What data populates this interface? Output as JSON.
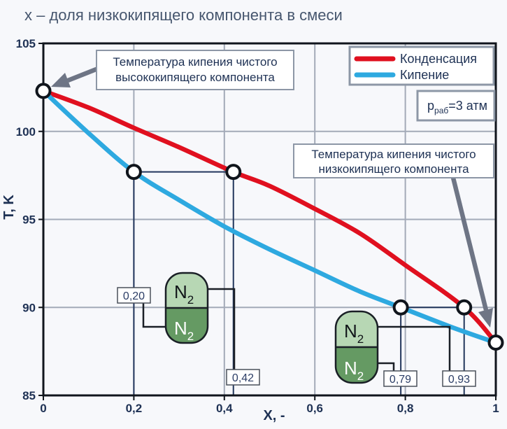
{
  "title": "х – доля низкокипящего компонента в смеси",
  "axes": {
    "x_label": "X, -",
    "y_label": "T, K"
  },
  "legend": {
    "items": [
      {
        "label": "Конденсация",
        "color": "#e0101f"
      },
      {
        "label": "Кипение",
        "color": "#2ea9e0"
      }
    ]
  },
  "pressure_box": {
    "symbol": "p",
    "subscript": "раб",
    "value": "=3 атм"
  },
  "annotations": {
    "high_boiling": {
      "line1": "Температура кипения чистого",
      "line2": "высококипящего компонента"
    },
    "low_boiling": {
      "line1": "Температура кипения чистого",
      "line2": "низкокипящего компонента"
    }
  },
  "component": {
    "symbol": "N",
    "subscript": "2"
  },
  "point_labels": {
    "liquid1": "0,20",
    "vapor1": "0,42",
    "liquid2": "0,79",
    "vapor2": "0,93"
  },
  "colors": {
    "background": "#f7f8fb",
    "grid": "#a3aab8",
    "navy": "#22365c",
    "axis": "#10151c",
    "arrow": "#6e7585",
    "capsule_light": "#b7d7b4",
    "capsule_dark": "#659a63"
  },
  "chart_data": {
    "type": "line",
    "title": "х – доля низкокипящего компонента в смеси",
    "xlabel": "X, -",
    "ylabel": "T, K",
    "grid": true,
    "legend_position": "top-right",
    "pressure_label": "p_раб=3 атм",
    "x_axis": {
      "range": [
        0,
        1
      ],
      "ticks": [
        0,
        0.2,
        0.4,
        0.6,
        0.8,
        1
      ],
      "tick_labels": [
        "0",
        "0,2",
        "0,4",
        "0,6",
        "0,8",
        "1"
      ]
    },
    "y_axis": {
      "range": [
        85,
        105
      ],
      "ticks": [
        85,
        90,
        95,
        100,
        105
      ],
      "tick_labels": [
        "85",
        "90",
        "95",
        "100",
        "105"
      ]
    },
    "series": [
      {
        "name": "Конденсация",
        "color": "#e0101f",
        "x": [
          0,
          0.1,
          0.2,
          0.3,
          0.42,
          0.5,
          0.6,
          0.7,
          0.8,
          0.93,
          1
        ],
        "y": [
          102.3,
          101.35,
          100.2,
          99.1,
          97.7,
          96.9,
          95.6,
          94.2,
          92.4,
          90.0,
          88.0
        ]
      },
      {
        "name": "Кипение",
        "color": "#2ea9e0",
        "x": [
          0,
          0.1,
          0.2,
          0.3,
          0.4,
          0.5,
          0.6,
          0.7,
          0.79,
          0.9,
          1
        ],
        "y": [
          102.3,
          99.9,
          97.7,
          96.1,
          94.6,
          93.3,
          92.1,
          90.9,
          90.0,
          88.9,
          88.0
        ]
      }
    ],
    "marked_points": [
      {
        "x": 0,
        "t": 102.3
      },
      {
        "x": 0.2,
        "t": 97.7
      },
      {
        "x": 0.42,
        "t": 97.7
      },
      {
        "x": 0.79,
        "t": 90.0
      },
      {
        "x": 0.93,
        "t": 90.0
      },
      {
        "x": 1,
        "t": 88.0
      }
    ],
    "tie_lines": [
      {
        "t": 97.7,
        "x1": 0.2,
        "x2": 0.42
      },
      {
        "t": 90.0,
        "x1": 0.79,
        "x2": 0.93
      }
    ],
    "drop_lines": [
      {
        "x": 0.2,
        "t": 97.7
      },
      {
        "x": 0.42,
        "t": 97.7
      },
      {
        "x": 0.79,
        "t": 90.0
      },
      {
        "x": 0.93,
        "t": 90.0
      }
    ]
  }
}
